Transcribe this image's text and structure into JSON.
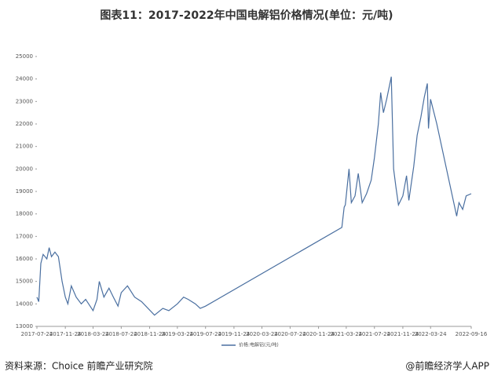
{
  "chart_data": {
    "type": "line",
    "title": "图表11：2017-2022年中国电解铝价格情况(单位：元/吨)",
    "source": "资料来源：Choice 前瞻产业研究院",
    "brand": "@前瞻经济学人APP",
    "x": [
      "2017-07-24",
      "2017-08-01",
      "2017-08-10",
      "2017-08-20",
      "2017-09-05",
      "2017-09-15",
      "2017-09-25",
      "2017-10-10",
      "2017-10-25",
      "2017-11-10",
      "2017-11-24",
      "2017-12-05",
      "2017-12-20",
      "2018-01-10",
      "2018-02-01",
      "2018-02-20",
      "2018-03-24",
      "2018-04-10",
      "2018-04-20",
      "2018-05-10",
      "2018-06-01",
      "2018-06-20",
      "2018-07-10",
      "2018-07-24",
      "2018-08-20",
      "2018-09-20",
      "2018-10-20",
      "2018-12-15",
      "2019-01-20",
      "2019-02-15",
      "2019-03-24",
      "2019-04-20",
      "2019-05-10",
      "2019-06-10",
      "2019-07-01",
      "2019-07-24",
      "2021-03-05",
      "2021-03-15",
      "2021-03-20",
      "2021-04-05",
      "2021-04-15",
      "2021-05-01",
      "2021-05-15",
      "2021-06-01",
      "2021-06-20",
      "2021-07-10",
      "2021-07-24",
      "2021-08-10",
      "2021-08-20",
      "2021-09-01",
      "2021-09-15",
      "2021-10-05",
      "2021-10-15",
      "2021-10-25",
      "2021-11-05",
      "2021-11-24",
      "2021-12-10",
      "2021-12-20",
      "2022-01-10",
      "2022-01-25",
      "2022-02-10",
      "2022-02-25",
      "2022-03-10",
      "2022-03-15",
      "2022-03-24",
      "2022-04-20",
      "2022-07-15",
      "2022-07-25",
      "2022-08-10",
      "2022-08-25",
      "2022-09-16"
    ],
    "series": [
      {
        "name": "价格:电解铝(元/吨)",
        "color": "#4a6fa0",
        "values": [
          14300,
          14100,
          15800,
          16200,
          16000,
          16500,
          16100,
          16300,
          16100,
          15000,
          14300,
          14000,
          14800,
          14300,
          14000,
          14200,
          13700,
          14200,
          15000,
          14300,
          14700,
          14300,
          13900,
          14500,
          14800,
          14300,
          14100,
          13500,
          13800,
          13700,
          14000,
          14300,
          14200,
          14000,
          13800,
          13900,
          17400,
          18300,
          18400,
          20000,
          18500,
          18800,
          19800,
          18500,
          18900,
          19500,
          20500,
          22000,
          23400,
          22500,
          23100,
          24100,
          20000,
          19200,
          18400,
          18800,
          19700,
          18600,
          20100,
          21500,
          22300,
          23200,
          23800,
          21800,
          23100,
          22000,
          17900,
          18500,
          18200,
          18800,
          18900
        ]
      }
    ],
    "xlim": [
      "2017-07-24",
      "2022-09-16"
    ],
    "xticks": [
      "2017-07-24",
      "2017-11-24",
      "2018-03-24",
      "2018-07-24",
      "2018-11-24",
      "2019-03-24",
      "2019-07-24",
      "2019-11-24",
      "2020-03-24",
      "2020-07-24",
      "2020-11-24",
      "2021-03-24",
      "2021-07-24",
      "2021-11-24",
      "2022-03-24",
      "2022-09-16"
    ],
    "ylim": [
      13000,
      25000
    ],
    "yticks": [
      13000,
      14000,
      15000,
      16000,
      17000,
      18000,
      19000,
      20000,
      21000,
      22000,
      23000,
      24000,
      25000
    ]
  }
}
